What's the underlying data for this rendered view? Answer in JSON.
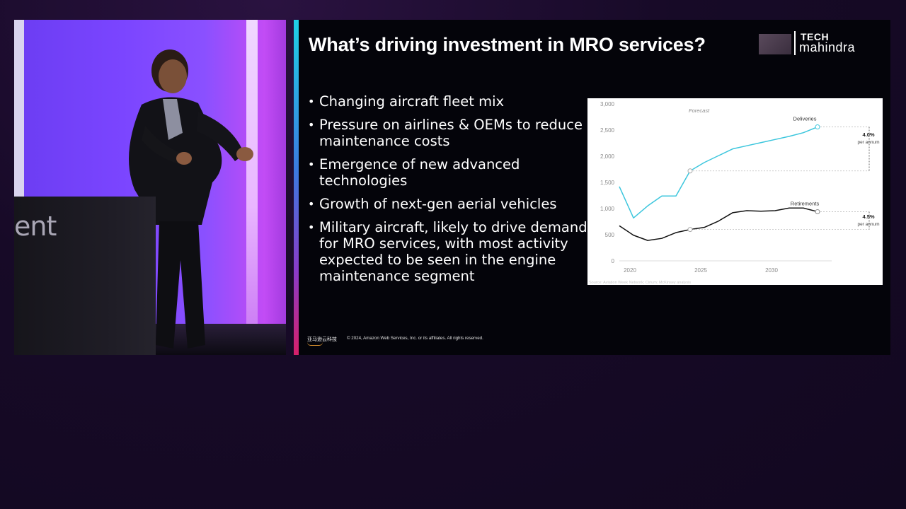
{
  "camera": {
    "podium_text": "ent"
  },
  "slide": {
    "title": "What’s driving investment in MRO services?",
    "logo": {
      "line1": "TECH",
      "line2": "mahindra"
    },
    "bullets": [
      "Changing aircraft fleet mix",
      "Pressure on airlines & OEMs to reduce maintenance costs",
      "Emergence of new advanced technologies",
      "Growth of next-gen aerial vehicles",
      "Military aircraft, likely to drive demand for MRO services, with most activity expected to be seen in the engine maintenance segment"
    ],
    "footer": {
      "logo_text": "亚马逊云科技",
      "copyright": "© 2024, Amazon Web Services, Inc. or its affiliates. All rights reserved."
    }
  },
  "chart_data": {
    "type": "line",
    "title": "",
    "xlabel": "",
    "ylabel": "",
    "x_ticks": [
      "2020",
      "2025",
      "2030"
    ],
    "y_ticks": [
      "0",
      "500",
      "1,000",
      "1,500",
      "2,000",
      "2,500",
      "3,000"
    ],
    "xlim": [
      2019,
      2034
    ],
    "ylim": [
      0,
      3000
    ],
    "forecast_label": "Forecast",
    "forecast_start": 2024,
    "source": "Source: Aviation Week Network; Cirium; McKinsey analysis",
    "grid": false,
    "series": [
      {
        "name": "Deliveries",
        "color": "#3cc6dd",
        "x": [
          2019,
          2020,
          2021,
          2022,
          2023,
          2024,
          2025,
          2026,
          2027,
          2028,
          2029,
          2030,
          2031,
          2032,
          2033
        ],
        "y": [
          1420,
          820,
          1050,
          1240,
          1240,
          1720,
          1880,
          2010,
          2140,
          2200,
          2260,
          2320,
          2380,
          2450,
          2560
        ]
      },
      {
        "name": "Retirements",
        "color": "#111111",
        "x": [
          2019,
          2020,
          2021,
          2022,
          2023,
          2024,
          2025,
          2026,
          2027,
          2028,
          2029,
          2030,
          2031,
          2032,
          2033
        ],
        "y": [
          670,
          490,
          390,
          430,
          540,
          600,
          640,
          760,
          920,
          960,
          950,
          960,
          1010,
          1010,
          940
        ]
      }
    ],
    "annotations": [
      {
        "series": "Deliveries",
        "value": "4.0%",
        "unit": "per annum"
      },
      {
        "series": "Retirements",
        "value": "4.5%",
        "unit": "per annum"
      }
    ],
    "colors": {
      "deliveries": "#3cc6dd",
      "retirements": "#111111",
      "axis_text": "#8a8a8a",
      "reference": "#bdbdbd"
    }
  }
}
